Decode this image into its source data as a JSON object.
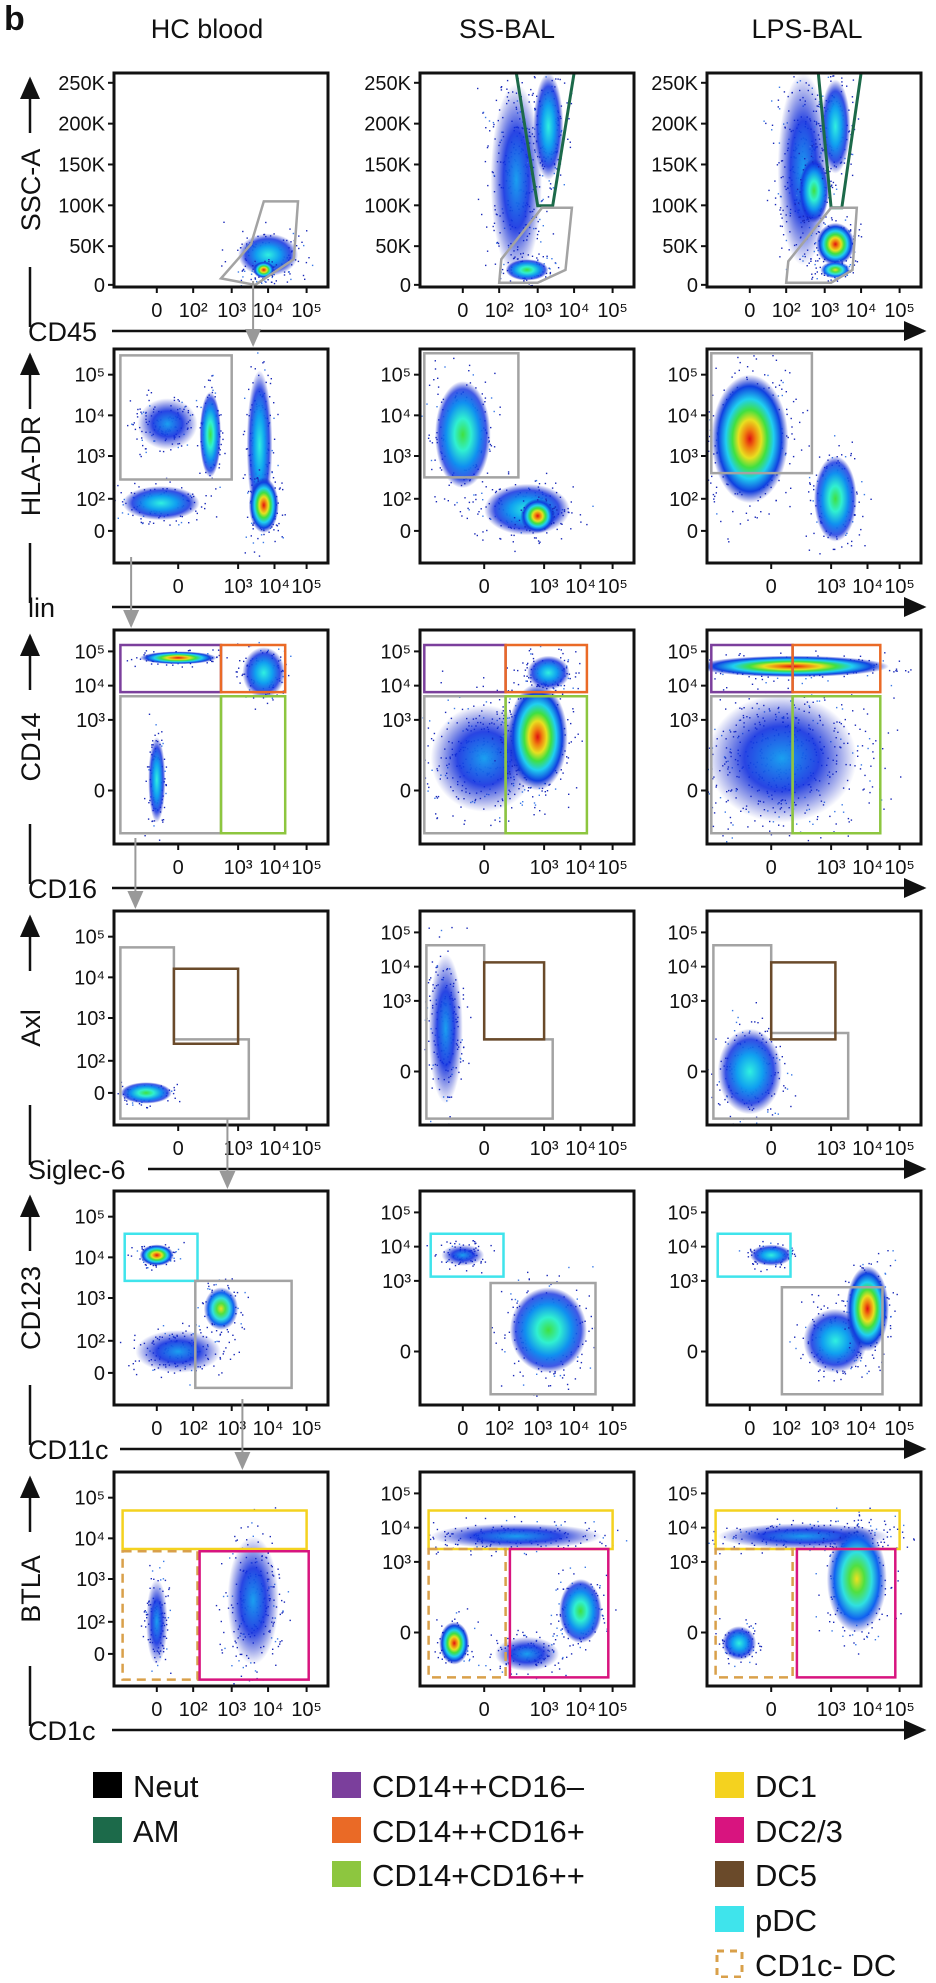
{
  "panel_label": "b",
  "chart_data": {
    "type": "scatter",
    "subtype": "flow-cytometry-density",
    "columns": [
      "HC blood",
      "SS-BAL",
      "LPS-BAL"
    ],
    "rows": [
      {
        "ylabel": "SSC-A",
        "xlabel": "CD45",
        "yticks": [
          [
            "250K",
            "200K",
            "150K",
            "100K",
            "50K",
            "0"
          ],
          [
            "250K",
            "200K",
            "150K",
            "100K",
            "50K",
            "0"
          ],
          [
            "250K",
            "200K",
            "150K",
            "100K",
            "50K",
            "0"
          ]
        ],
        "xticks": [
          [
            "0",
            "10²",
            "10³",
            "10⁴",
            "10⁵"
          ],
          [
            "0",
            "10²",
            "10³",
            "10⁴",
            "10⁵"
          ],
          [
            "0",
            "10²",
            "10³",
            "10⁴",
            "10⁵"
          ]
        ],
        "gates": [
          [
            "gray"
          ],
          [
            "AM",
            "gray"
          ],
          [
            "AM",
            "gray"
          ]
        ]
      },
      {
        "ylabel": "HLA-DR",
        "xlabel": "lin",
        "yticks": [
          [
            "10⁵",
            "10⁴",
            "10³",
            "10²",
            "0"
          ],
          [
            "10⁵",
            "10⁴",
            "10³",
            "10²",
            "0"
          ],
          [
            "10⁵",
            "10⁴",
            "10³",
            "10²",
            "0"
          ]
        ],
        "xticks": [
          [
            "0",
            "10³",
            "10⁴",
            "10⁵"
          ],
          [
            "0",
            "10³",
            "10⁴",
            "10⁵"
          ],
          [
            "0",
            "10³",
            "10⁴",
            "10⁵"
          ]
        ],
        "gates": [
          [
            "gray"
          ],
          [
            "gray"
          ],
          [
            "gray"
          ]
        ]
      },
      {
        "ylabel": "CD14",
        "xlabel": "CD16",
        "yticks": [
          [
            "10⁵",
            "10⁴",
            "10³",
            "0"
          ],
          [
            "10⁵",
            "10⁴",
            "10³",
            "0"
          ],
          [
            "10⁵",
            "10⁴",
            "10³",
            "0"
          ]
        ],
        "xticks": [
          [
            "0",
            "10³",
            "10⁴",
            "10⁵"
          ],
          [
            "0",
            "10³",
            "10⁴",
            "10⁵"
          ],
          [
            "0",
            "10³",
            "10⁴",
            "10⁵"
          ]
        ],
        "gates": [
          [
            "CD14++CD16–",
            "CD14++CD16+",
            "gray",
            "CD14+CD16++"
          ],
          [
            "CD14++CD16–",
            "CD14++CD16+",
            "gray",
            "CD14+CD16++"
          ],
          [
            "CD14++CD16–",
            "CD14++CD16+",
            "gray",
            "CD14+CD16++"
          ]
        ]
      },
      {
        "ylabel": "Axl",
        "xlabel": "Siglec-6",
        "yticks": [
          [
            "10⁵",
            "10⁴",
            "10³",
            "10²",
            "0"
          ],
          [
            "10⁵",
            "10⁴",
            "10³",
            "0"
          ],
          [
            "10⁵",
            "10⁴",
            "10³",
            "0"
          ]
        ],
        "xticks": [
          [
            "0",
            "10³",
            "10⁴",
            "10⁵"
          ],
          [
            "0",
            "10³",
            "10⁴",
            "10⁵"
          ],
          [
            "0",
            "10³",
            "10⁴",
            "10⁵"
          ]
        ],
        "gates": [
          [
            "gray",
            "DC5"
          ],
          [
            "gray",
            "DC5"
          ],
          [
            "gray",
            "DC5"
          ]
        ]
      },
      {
        "ylabel": "CD123",
        "xlabel": "CD11c",
        "yticks": [
          [
            "10⁵",
            "10⁴",
            "10³",
            "10²",
            "0"
          ],
          [
            "10⁵",
            "10⁴",
            "10³",
            "0"
          ],
          [
            "10⁵",
            "10⁴",
            "10³",
            "0"
          ]
        ],
        "xticks": [
          [
            "0",
            "10²",
            "10³",
            "10⁴",
            "10⁵"
          ],
          [
            "0",
            "10²",
            "10³",
            "10⁴",
            "10⁵"
          ],
          [
            "0",
            "10²",
            "10³",
            "10⁴",
            "10⁵"
          ]
        ],
        "gates": [
          [
            "pDC",
            "gray"
          ],
          [
            "pDC",
            "gray"
          ],
          [
            "pDC",
            "gray"
          ]
        ]
      },
      {
        "ylabel": "BTLA",
        "xlabel": "CD1c",
        "yticks": [
          [
            "10⁵",
            "10⁴",
            "10³",
            "10²",
            "0"
          ],
          [
            "10⁵",
            "10⁴",
            "10³",
            "0"
          ],
          [
            "10⁵",
            "10⁴",
            "10³",
            "0"
          ]
        ],
        "xticks": [
          [
            "0",
            "10²",
            "10³",
            "10⁴",
            "10⁵"
          ],
          [
            "0",
            "10³",
            "10⁴",
            "10⁵"
          ],
          [
            "0",
            "10³",
            "10⁴",
            "10⁵"
          ]
        ],
        "gates": [
          [
            "DC1",
            "CD1c- DC",
            "DC2/3"
          ],
          [
            "DC1",
            "CD1c- DC",
            "DC2/3"
          ],
          [
            "DC1",
            "CD1c- DC",
            "DC2/3"
          ]
        ]
      }
    ],
    "gate_colors": {
      "gray": "#a3a3a3",
      "AM": "#1c6a4a",
      "CD14++CD16–": "#7b3f9c",
      "CD14++CD16+": "#ea6a26",
      "CD14+CD16++": "#8dc63f",
      "DC1": "#f4d21f",
      "DC2/3": "#d8147f",
      "DC5": "#6a4a2a",
      "pDC": "#3fe4ec",
      "CD1c- DC": "#d9a04a"
    },
    "legend": [
      {
        "label": "Neut",
        "color": "#000000",
        "style": "solid"
      },
      {
        "label": "AM",
        "color": "#1c6a4a",
        "style": "solid"
      },
      {
        "label": "CD14++CD16–",
        "color": "#7b3f9c",
        "style": "solid"
      },
      {
        "label": "CD14++CD16+",
        "color": "#ea6a26",
        "style": "solid"
      },
      {
        "label": "CD14+CD16++",
        "color": "#8dc63f",
        "style": "solid"
      },
      {
        "label": "DC1",
        "color": "#f4d21f",
        "style": "solid"
      },
      {
        "label": "DC2/3",
        "color": "#d8147f",
        "style": "solid"
      },
      {
        "label": "DC5",
        "color": "#6a4a2a",
        "style": "solid"
      },
      {
        "label": "pDC",
        "color": "#3fe4ec",
        "style": "solid"
      },
      {
        "label": "CD1c- DC",
        "color": "#d9a04a",
        "style": "dashed"
      }
    ],
    "grid": false,
    "legend_position": "bottom"
  }
}
